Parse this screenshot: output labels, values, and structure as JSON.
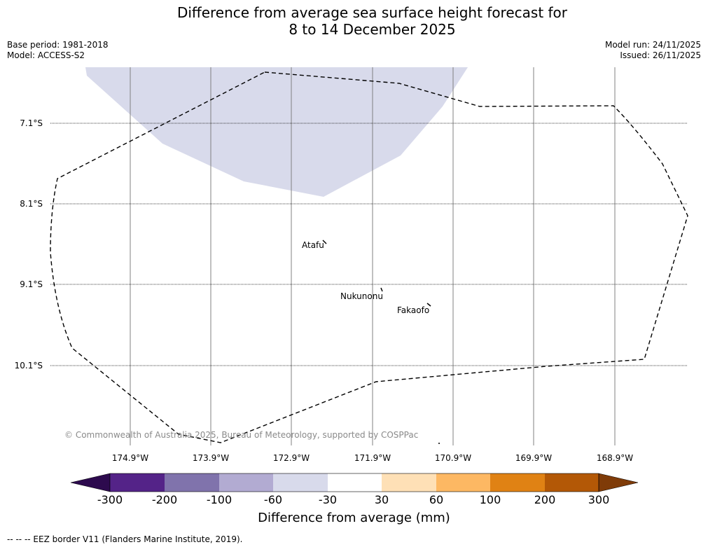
{
  "header": {
    "title_line1": "Difference from average sea surface height forecast for",
    "title_line2": "8 to 14 December 2025",
    "base_period": "Base period: 1981-2018",
    "model": "Model: ACCESS-S2",
    "model_run": "Model run: 24/11/2025",
    "issued": "Issued: 26/11/2025"
  },
  "map": {
    "latitude_labels": [
      "7.1°S",
      "8.1°S",
      "9.1°S",
      "10.1°S"
    ],
    "longitude_labels": [
      "174.9°W",
      "173.9°W",
      "172.9°W",
      "171.9°W",
      "170.9°W",
      "169.9°W",
      "168.9°W"
    ],
    "places": [
      "Atafu",
      "Nukunonu",
      "Fakaofo"
    ],
    "copyright": "© Commonwealth of Australia 2025, Bureau of Meteorology, supported by COSPPac",
    "anomaly_region_category": "-60 to -30"
  },
  "colorbar": {
    "ticks": [
      "-300",
      "-200",
      "-100",
      "-60",
      "-30",
      "30",
      "60",
      "100",
      "200",
      "300"
    ],
    "colors": [
      "#2d0a4e",
      "#542388",
      "#8073ac",
      "#b2abd2",
      "#d8daeb",
      "#ffffff",
      "#fee0b6",
      "#fdb863",
      "#e08214",
      "#b35806",
      "#7f3b08"
    ],
    "label": "Difference from average (mm)"
  },
  "legend": {
    "eez_text": "--  --  -- EEZ border V11 (Flanders Marine Institute, 2019)."
  },
  "colors": {
    "anomaly_fill": "#d8daeb",
    "grid_line": "#808080",
    "copyright_text": "#8a8a8a"
  }
}
